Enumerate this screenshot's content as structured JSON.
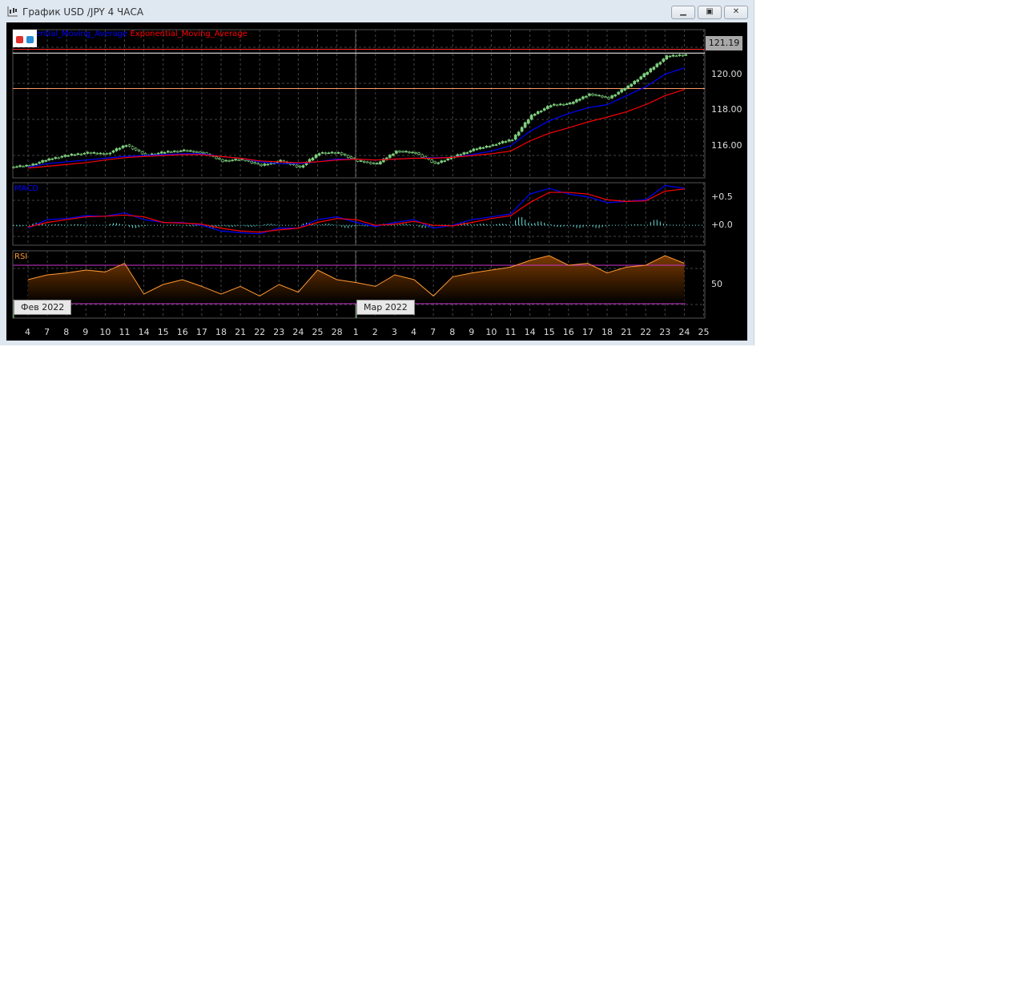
{
  "window": {
    "title": "График USD /JPY  4 ЧАСА",
    "buttons": [
      "minimize",
      "restore",
      "close"
    ]
  },
  "legend": {
    "ma_label": "ential_Moving_Average",
    "ema_label": "Exponential_Moving_Average"
  },
  "colors": {
    "bull": "#7fd07f",
    "ma": "#0000ff",
    "ema": "#ff0000",
    "macd": "#0000ff",
    "signal": "#ff0000",
    "hist": "#66dddd",
    "rsi": "#ff9933",
    "rsi_levels": "#cc33cc"
  },
  "chart_data": {
    "type": "candlestick",
    "x_tick_labels": [
      "4",
      "7",
      "8",
      "9",
      "10",
      "11",
      "14",
      "15",
      "16",
      "17",
      "18",
      "21",
      "22",
      "23",
      "24",
      "25",
      "28",
      "1",
      "2",
      "3",
      "4",
      "7",
      "8",
      "9",
      "10",
      "11",
      "14",
      "15",
      "16",
      "17",
      "18",
      "21",
      "22",
      "23",
      "24",
      "25"
    ],
    "month_labels": [
      "Фев 2022",
      "Мар 2022"
    ],
    "price": {
      "y_ticks": [
        "116.00",
        "118.00",
        "120.00"
      ],
      "ylim": [
        114.2,
        122.5
      ],
      "last_price": "121.19",
      "close": [
        114.9,
        115.25,
        115.47,
        115.6,
        115.55,
        116.05,
        115.47,
        115.64,
        115.73,
        115.6,
        115.15,
        115.24,
        114.9,
        115.15,
        114.8,
        115.6,
        115.6,
        115.15,
        114.98,
        115.7,
        115.6,
        115.0,
        115.4,
        115.78,
        116.05,
        116.36,
        117.7,
        118.27,
        118.36,
        118.9,
        118.67,
        119.33,
        120.13,
        121.0,
        121.1
      ],
      "ma": [
        114.8,
        115.0,
        115.1,
        115.2,
        115.3,
        115.4,
        115.45,
        115.5,
        115.55,
        115.55,
        115.4,
        115.3,
        115.1,
        115.0,
        115.0,
        115.1,
        115.25,
        115.25,
        115.2,
        115.25,
        115.3,
        115.33,
        115.35,
        115.5,
        115.7,
        116.0,
        116.8,
        117.4,
        117.8,
        118.13,
        118.3,
        118.8,
        119.3,
        120.0,
        120.36
      ],
      "ema": [
        114.75,
        114.85,
        114.95,
        115.05,
        115.2,
        115.33,
        115.4,
        115.45,
        115.5,
        115.5,
        115.4,
        115.3,
        115.15,
        115.1,
        115.05,
        115.1,
        115.2,
        115.25,
        115.2,
        115.25,
        115.3,
        115.3,
        115.35,
        115.45,
        115.55,
        115.7,
        116.27,
        116.7,
        117.0,
        117.33,
        117.6,
        117.9,
        118.3,
        118.8,
        119.15
      ],
      "h_lines": [
        {
          "value": 121.4,
          "color": "#ff3030"
        },
        {
          "value": 121.19,
          "color": "#ffffff"
        },
        {
          "value": 119.2,
          "color": "#ff9966"
        }
      ]
    },
    "macd": {
      "title": "MACD",
      "y_ticks": [
        "+0.5",
        "+0.0"
      ],
      "ylim": [
        -0.35,
        0.75
      ],
      "macd": [
        -0.05,
        0.1,
        0.12,
        0.17,
        0.16,
        0.22,
        0.1,
        0.05,
        0.05,
        0.0,
        -0.1,
        -0.13,
        -0.15,
        -0.05,
        -0.05,
        0.1,
        0.15,
        0.05,
        -0.02,
        0.05,
        0.1,
        -0.05,
        0.0,
        0.1,
        0.15,
        0.2,
        0.55,
        0.65,
        0.55,
        0.5,
        0.4,
        0.42,
        0.45,
        0.7,
        0.65
      ],
      "signal": [
        -0.03,
        0.05,
        0.1,
        0.15,
        0.16,
        0.18,
        0.15,
        0.05,
        0.04,
        0.02,
        -0.05,
        -0.1,
        -0.12,
        -0.08,
        -0.05,
        0.05,
        0.12,
        0.1,
        0.0,
        0.02,
        0.07,
        0.0,
        -0.01,
        0.05,
        0.12,
        0.17,
        0.4,
        0.58,
        0.58,
        0.55,
        0.45,
        0.42,
        0.43,
        0.6,
        0.64
      ],
      "hist": [
        -0.02,
        0.05,
        0.02,
        0.02,
        0.0,
        0.04,
        -0.05,
        0.0,
        0.01,
        -0.02,
        -0.05,
        -0.03,
        -0.03,
        0.03,
        0.0,
        0.05,
        0.03,
        -0.05,
        -0.02,
        0.03,
        0.03,
        -0.05,
        0.01,
        0.05,
        0.03,
        0.03,
        0.15,
        0.07,
        -0.03,
        -0.05,
        -0.05,
        0.0,
        0.02,
        0.1,
        0.01
      ]
    },
    "rsi": {
      "title": "RSI",
      "y_ticks": [
        "50"
      ],
      "ylim": [
        15,
        85
      ],
      "levels": [
        70,
        30
      ],
      "values": [
        55,
        60,
        62,
        65,
        63,
        72,
        40,
        50,
        55,
        48,
        40,
        48,
        38,
        50,
        42,
        65,
        55,
        52,
        48,
        60,
        55,
        38,
        58,
        62,
        65,
        68,
        75,
        80,
        70,
        72,
        62,
        68,
        70,
        80,
        72
      ]
    }
  }
}
